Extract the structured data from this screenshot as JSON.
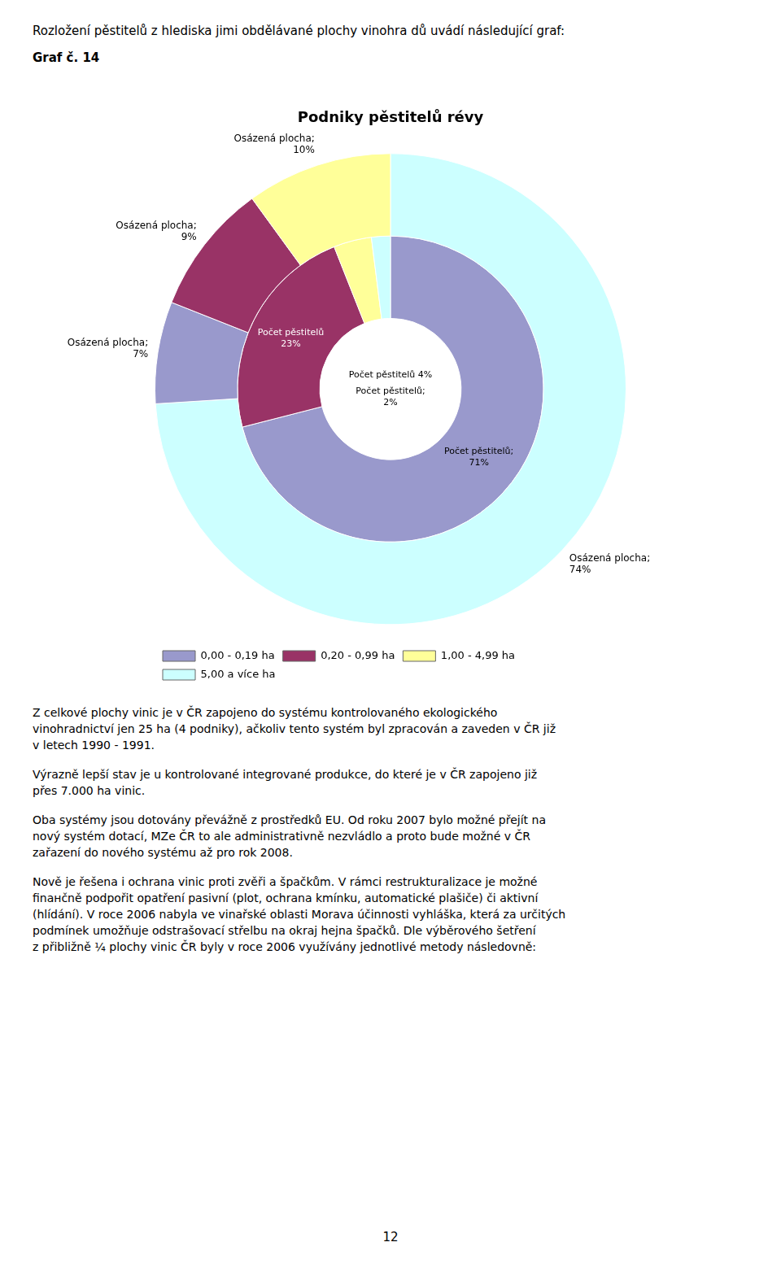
{
  "chart_data": {
    "type": "pie",
    "title": "Podniky pěstitelů révy",
    "categories": [
      "0,00 - 0,19 ha",
      "0,20 - 0,99 ha",
      "1,00 - 4,99 ha",
      "5,00 a více ha"
    ],
    "colors": [
      "#9999CC",
      "#993366",
      "#FFFF99",
      "#CCFFFF"
    ],
    "legend": "lower left",
    "data_labels": true,
    "series": [
      {
        "values": [
          71,
          23,
          4,
          2
        ],
        "colors": [
          "#9999CC",
          "#993366",
          "#FFFF99",
          "#CCFFFF"
        ],
        "value_labels": [
          "Počet pěstitelů;\n71%",
          "Počet pěstitelů\n23%",
          "Počet pěstitelů 4%",
          "Počet pěstitelů;\n2%"
        ]
      },
      {
        "values": [
          74,
          7,
          9,
          10
        ],
        "colors": [
          "#CCFFFF",
          "#9999CC",
          "#993366",
          "#FFFF99"
        ],
        "value_labels": [
          "Osázená plocha;\n74%",
          "Osázená plocha;\n7%",
          "Osázená plocha;\n9%",
          "Osázená plocha;\n10%"
        ]
      }
    ]
  },
  "header_text": "Rozložení pěstitelů z hlediska jimi obdělávané plochy vinohra dů uvádí následující graf:",
  "graf_label": "Graf č. 14",
  "paragraphs": [
    "Z celkové plochy vinic je v ČR zapojeno do systému kontrolovaného ekologického\nvinohradnictví jen 25 ha (4 podniky), ačkoliv tento systém byl zpracován a zaveden v ČR již\nv letech 1990 - 1991.",
    "Výrazně lepší stav je u kontrolované integrované produkce, do které je v ČR zapojeno již\npřes 7.000 ha vinic.",
    "Oba systémy jsou dotovány převážně z prostředků EU. Od roku 2007 bylo možné přejít na\nnový systém dotací, MZe ČR to ale administrativně nezvládlo a proto bude možné v ČR\nzařazení do nového systému až pro rok 2008.",
    "Nově je řešena i ochrana vinic proti zvěři a špačkům. V rámci restrukturalizace je možné\nfinанčně podpořit opatření pasivní (plot, ochrana kmínku, automatické plašiče) či aktivní\n(hlídání). V roce 2006 nabyla ve vinařské oblasti Morava účinnosti vyhláška, která za určitých\npodmínek umožňuje odstrašovací střelbu na okraj hejna špačků. Dle výběrového šetření\nz přibližně ¼ plochy vinic ČR byly v roce 2006 využívány jednotlivé metody následovně:"
  ],
  "page_number": "12"
}
